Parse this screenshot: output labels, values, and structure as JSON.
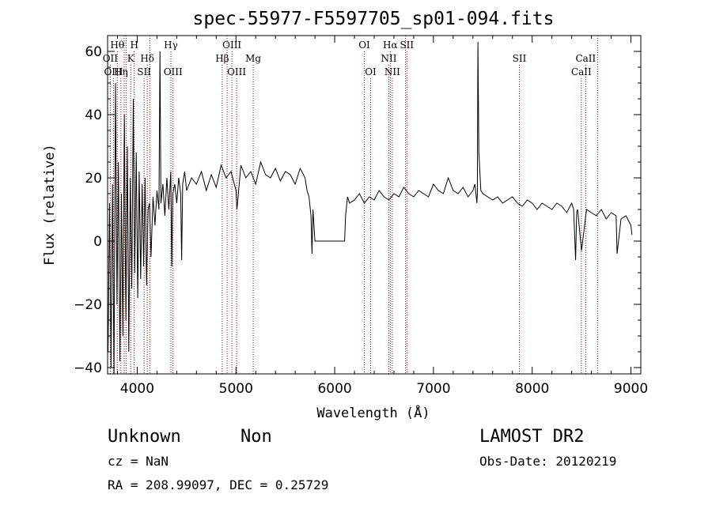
{
  "chart_data": {
    "type": "line",
    "title": "spec-55977-F5597705_sp01-094.fits",
    "xlabel": "Wavelength (Å)",
    "ylabel": "Flux (relative)",
    "xlim": [
      3700,
      9100
    ],
    "ylim": [
      -42,
      65
    ],
    "xticks": [
      4000,
      5000,
      6000,
      7000,
      8000,
      9000
    ],
    "yticks": [
      -40,
      -20,
      0,
      20,
      40,
      60
    ],
    "grid": false,
    "line_color": "#000000",
    "marker_color": "#8b0000",
    "spectral_lines": [
      {
        "name": "Hθ",
        "wavelength": 3798,
        "row": 0
      },
      {
        "name": "H",
        "wavelength": 3970,
        "row": 0
      },
      {
        "name": "Hγ",
        "wavelength": 4341,
        "row": 0
      },
      {
        "name": "OIII",
        "wavelength": 4959,
        "row": 0
      },
      {
        "name": "OI",
        "wavelength": 6300,
        "row": 0
      },
      {
        "name": "Hα",
        "wavelength": 6563,
        "row": 0
      },
      {
        "name": "SII",
        "wavelength": 6731,
        "row": 0
      },
      {
        "name": "OII",
        "wavelength": 3727,
        "row": 1
      },
      {
        "name": "K",
        "wavelength": 3934,
        "row": 1
      },
      {
        "name": "Hδ",
        "wavelength": 4102,
        "row": 1
      },
      {
        "name": "Hβ",
        "wavelength": 4861,
        "row": 1
      },
      {
        "name": "Mg",
        "wavelength": 5175,
        "row": 1
      },
      {
        "name": "NII",
        "wavelength": 6548,
        "row": 1
      },
      {
        "name": "SII",
        "wavelength": 7870,
        "row": 1
      },
      {
        "name": "CaII",
        "wavelength": 8542,
        "row": 1
      },
      {
        "name": "OIII",
        "wavelength": 3760,
        "row": 2
      },
      {
        "name": "Hη",
        "wavelength": 3835,
        "row": 2
      },
      {
        "name": "SII",
        "wavelength": 4070,
        "row": 2
      },
      {
        "name": "OIII",
        "wavelength": 4363,
        "row": 2
      },
      {
        "name": "OIII",
        "wavelength": 5007,
        "row": 2
      },
      {
        "name": "OI",
        "wavelength": 6364,
        "row": 2
      },
      {
        "name": "NII",
        "wavelength": 6583,
        "row": 2
      },
      {
        "name": "CaII",
        "wavelength": 8498,
        "row": 2
      },
      {
        "name": "",
        "wavelength": 3889,
        "row": 3
      },
      {
        "name": "",
        "wavelength": 3868,
        "row": 3
      },
      {
        "name": "",
        "wavelength": 4128,
        "row": 3
      },
      {
        "name": "",
        "wavelength": 4910,
        "row": 3
      },
      {
        "name": "",
        "wavelength": 6717,
        "row": 3
      },
      {
        "name": "",
        "wavelength": 8662,
        "row": 3
      }
    ],
    "series": [
      {
        "x": [
          3705,
          3720,
          3735,
          3750,
          3765,
          3780,
          3795,
          3810,
          3825,
          3840,
          3855,
          3870,
          3885,
          3900,
          3915,
          3930,
          3945,
          3960,
          3975,
          3990,
          4005,
          4020,
          4035,
          4050,
          4065,
          4080,
          4095,
          4110,
          4125,
          4140,
          4160,
          4180,
          4200,
          4220,
          4230,
          4240,
          4260,
          4280,
          4300,
          4320,
          4340,
          4350,
          4360,
          4380,
          4400,
          4420,
          4440,
          4450,
          4460,
          4480,
          4500,
          4550,
          4600,
          4650,
          4700,
          4750,
          4800,
          4850,
          4900,
          4950,
          5000,
          5010,
          5050,
          5100,
          5150,
          5200,
          5250,
          5300,
          5350,
          5400,
          5450,
          5500,
          5550,
          5600,
          5650,
          5700,
          5720,
          5740,
          5760,
          5770,
          5780,
          5800,
          6100,
          6110,
          6130,
          6150,
          6200,
          6250,
          6300,
          6350,
          6400,
          6450,
          6500,
          6550,
          6600,
          6650,
          6700,
          6750,
          6800,
          6850,
          6900,
          6950,
          7000,
          7050,
          7100,
          7150,
          7200,
          7250,
          7300,
          7350,
          7400,
          7420,
          7440,
          7445,
          7450,
          7460,
          7480,
          7500,
          7550,
          7600,
          7650,
          7700,
          7750,
          7800,
          7850,
          7900,
          7950,
          8000,
          8050,
          8100,
          8150,
          8200,
          8250,
          8300,
          8350,
          8400,
          8420,
          8440,
          8450,
          8460,
          8500,
          8550,
          8600,
          8650,
          8700,
          8750,
          8800,
          8850,
          8860,
          8900,
          8950,
          9000,
          9010
        ],
        "y": [
          -35,
          12,
          -40,
          18,
          -42,
          50,
          -20,
          25,
          -38,
          15,
          -30,
          40,
          -25,
          30,
          -35,
          20,
          -15,
          45,
          -10,
          28,
          -18,
          22,
          -12,
          18,
          -8,
          20,
          -14,
          10,
          12,
          -5,
          14,
          5,
          16,
          10,
          60,
          12,
          18,
          8,
          20,
          10,
          22,
          -8,
          15,
          18,
          12,
          20,
          15,
          -6,
          18,
          22,
          16,
          20,
          18,
          22,
          16,
          21,
          17,
          24,
          20,
          22,
          16,
          10,
          24,
          20,
          22,
          18,
          25,
          21,
          20,
          23,
          19,
          22,
          21,
          18,
          23,
          20,
          16,
          14,
          8,
          -4,
          10,
          0,
          0,
          8,
          14,
          12,
          13,
          15,
          12,
          14,
          13,
          16,
          14,
          13,
          15,
          14,
          17,
          15,
          14,
          16,
          15,
          14,
          18,
          16,
          15,
          20,
          16,
          15,
          17,
          14,
          16,
          18,
          12,
          15,
          63,
          28,
          16,
          15,
          14,
          13,
          14,
          12,
          13,
          14,
          12,
          11,
          13,
          12,
          10,
          12,
          11,
          10,
          12,
          11,
          9,
          12,
          10,
          -6,
          9,
          10,
          -3,
          10,
          9,
          8,
          10,
          7,
          9,
          8,
          -4,
          7,
          8,
          5,
          2
        ]
      }
    ]
  },
  "info": {
    "object_class": "Unknown",
    "object_subclass": "Non",
    "survey": "LAMOST DR2",
    "cz": "cz = NaN",
    "obs_date": "Obs-Date: 20120219",
    "coords": "RA = 208.99097, DEC =    0.25729"
  }
}
